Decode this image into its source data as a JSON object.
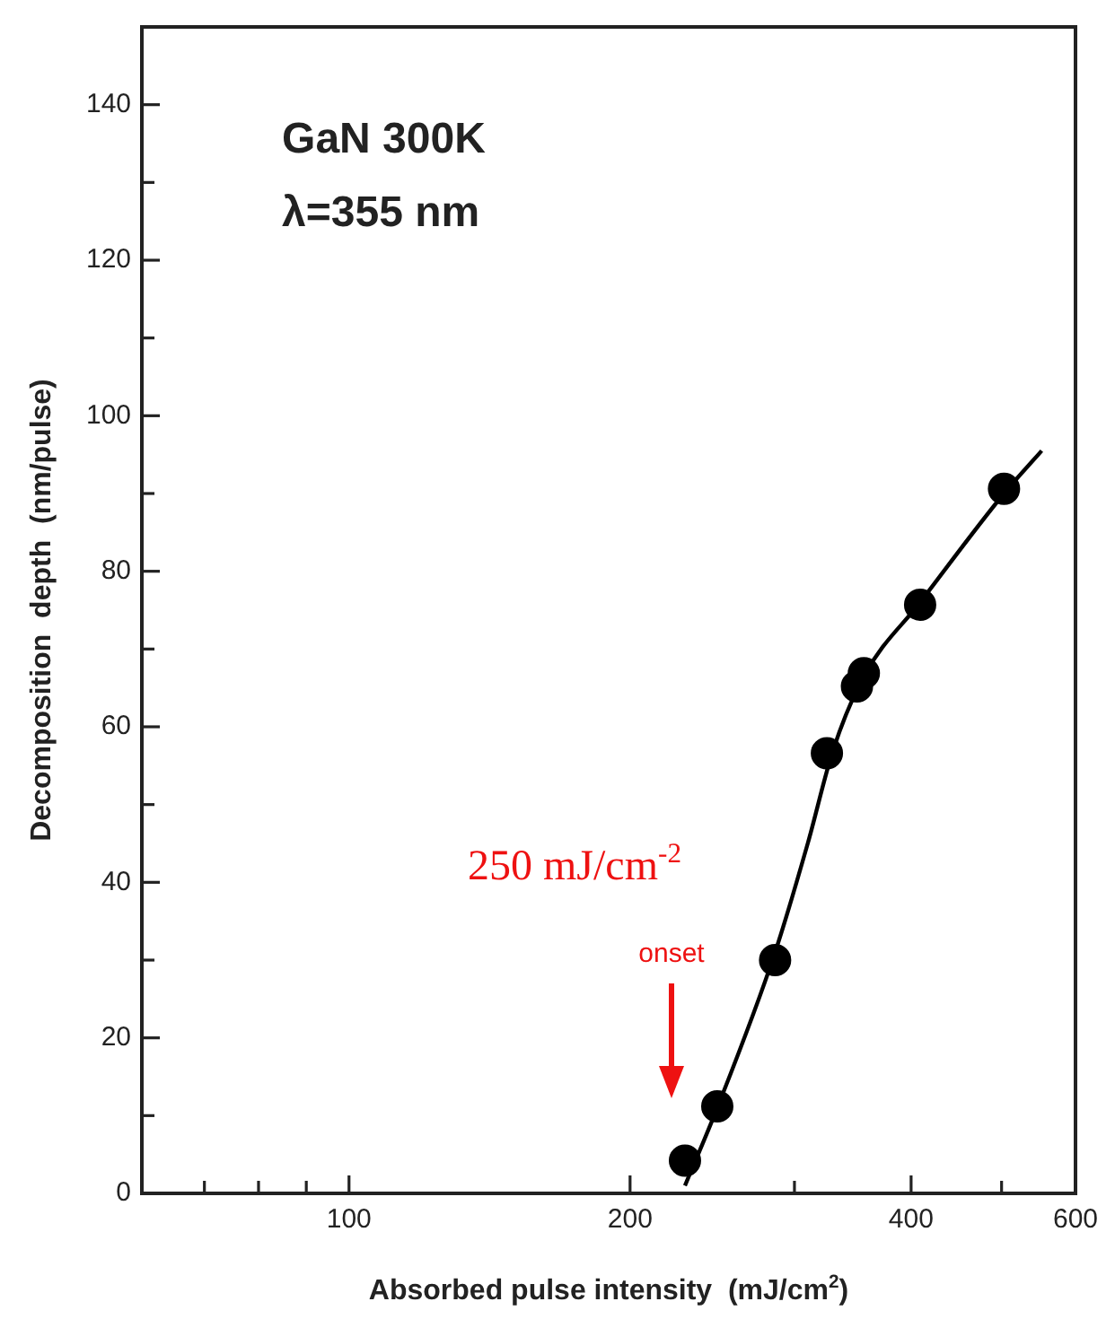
{
  "chart_data": {
    "type": "scatter",
    "xlabel": "Absorbed pulse intensity  (mJ/cm$^{2}$)",
    "ylabel": "Decomposition  depth  (nm/pulse)",
    "log": "x",
    "grid": false,
    "legend": false,
    "xlim": [
      60,
      600
    ],
    "ylim": [
      0,
      150
    ],
    "xticks": [
      {
        "value": 70,
        "label": null
      },
      {
        "value": 80,
        "label": null
      },
      {
        "value": 90,
        "label": null
      },
      100,
      200,
      {
        "value": 300,
        "label": null
      },
      400,
      {
        "value": 500,
        "label": null
      },
      600
    ],
    "yticks": [
      0,
      {
        "value": 10,
        "label": null
      },
      20,
      {
        "value": 30,
        "label": null
      },
      40,
      {
        "value": 50,
        "label": null
      },
      60,
      {
        "value": 70,
        "label": null
      },
      80,
      {
        "value": 90,
        "label": null
      },
      100,
      {
        "value": 110,
        "label": null
      },
      120,
      {
        "value": 130,
        "label": null
      },
      140
    ],
    "series": [
      {
        "color": "#000000",
        "marker": "circle",
        "x": [
          229,
          248,
          286,
          325,
          350,
          356,
          409,
          503
        ],
        "values": [
          4.2,
          11.2,
          30,
          56.6,
          65.2,
          66.9,
          75.7,
          90.6
        ]
      },
      {
        "type": "line",
        "color": "#000000",
        "marker": "none",
        "line_style": "solid",
        "x": [
          229,
          248,
          286,
          310,
          330,
          356,
          409,
          503,
          552
        ],
        "values": [
          1,
          11,
          31,
          45,
          57,
          66.5,
          76,
          90,
          95.5
        ]
      }
    ],
    "annotations": [
      "GaN 300K",
      "λ=355 nm",
      "250 mJ/cm$^{-2}$",
      "onset"
    ]
  }
}
